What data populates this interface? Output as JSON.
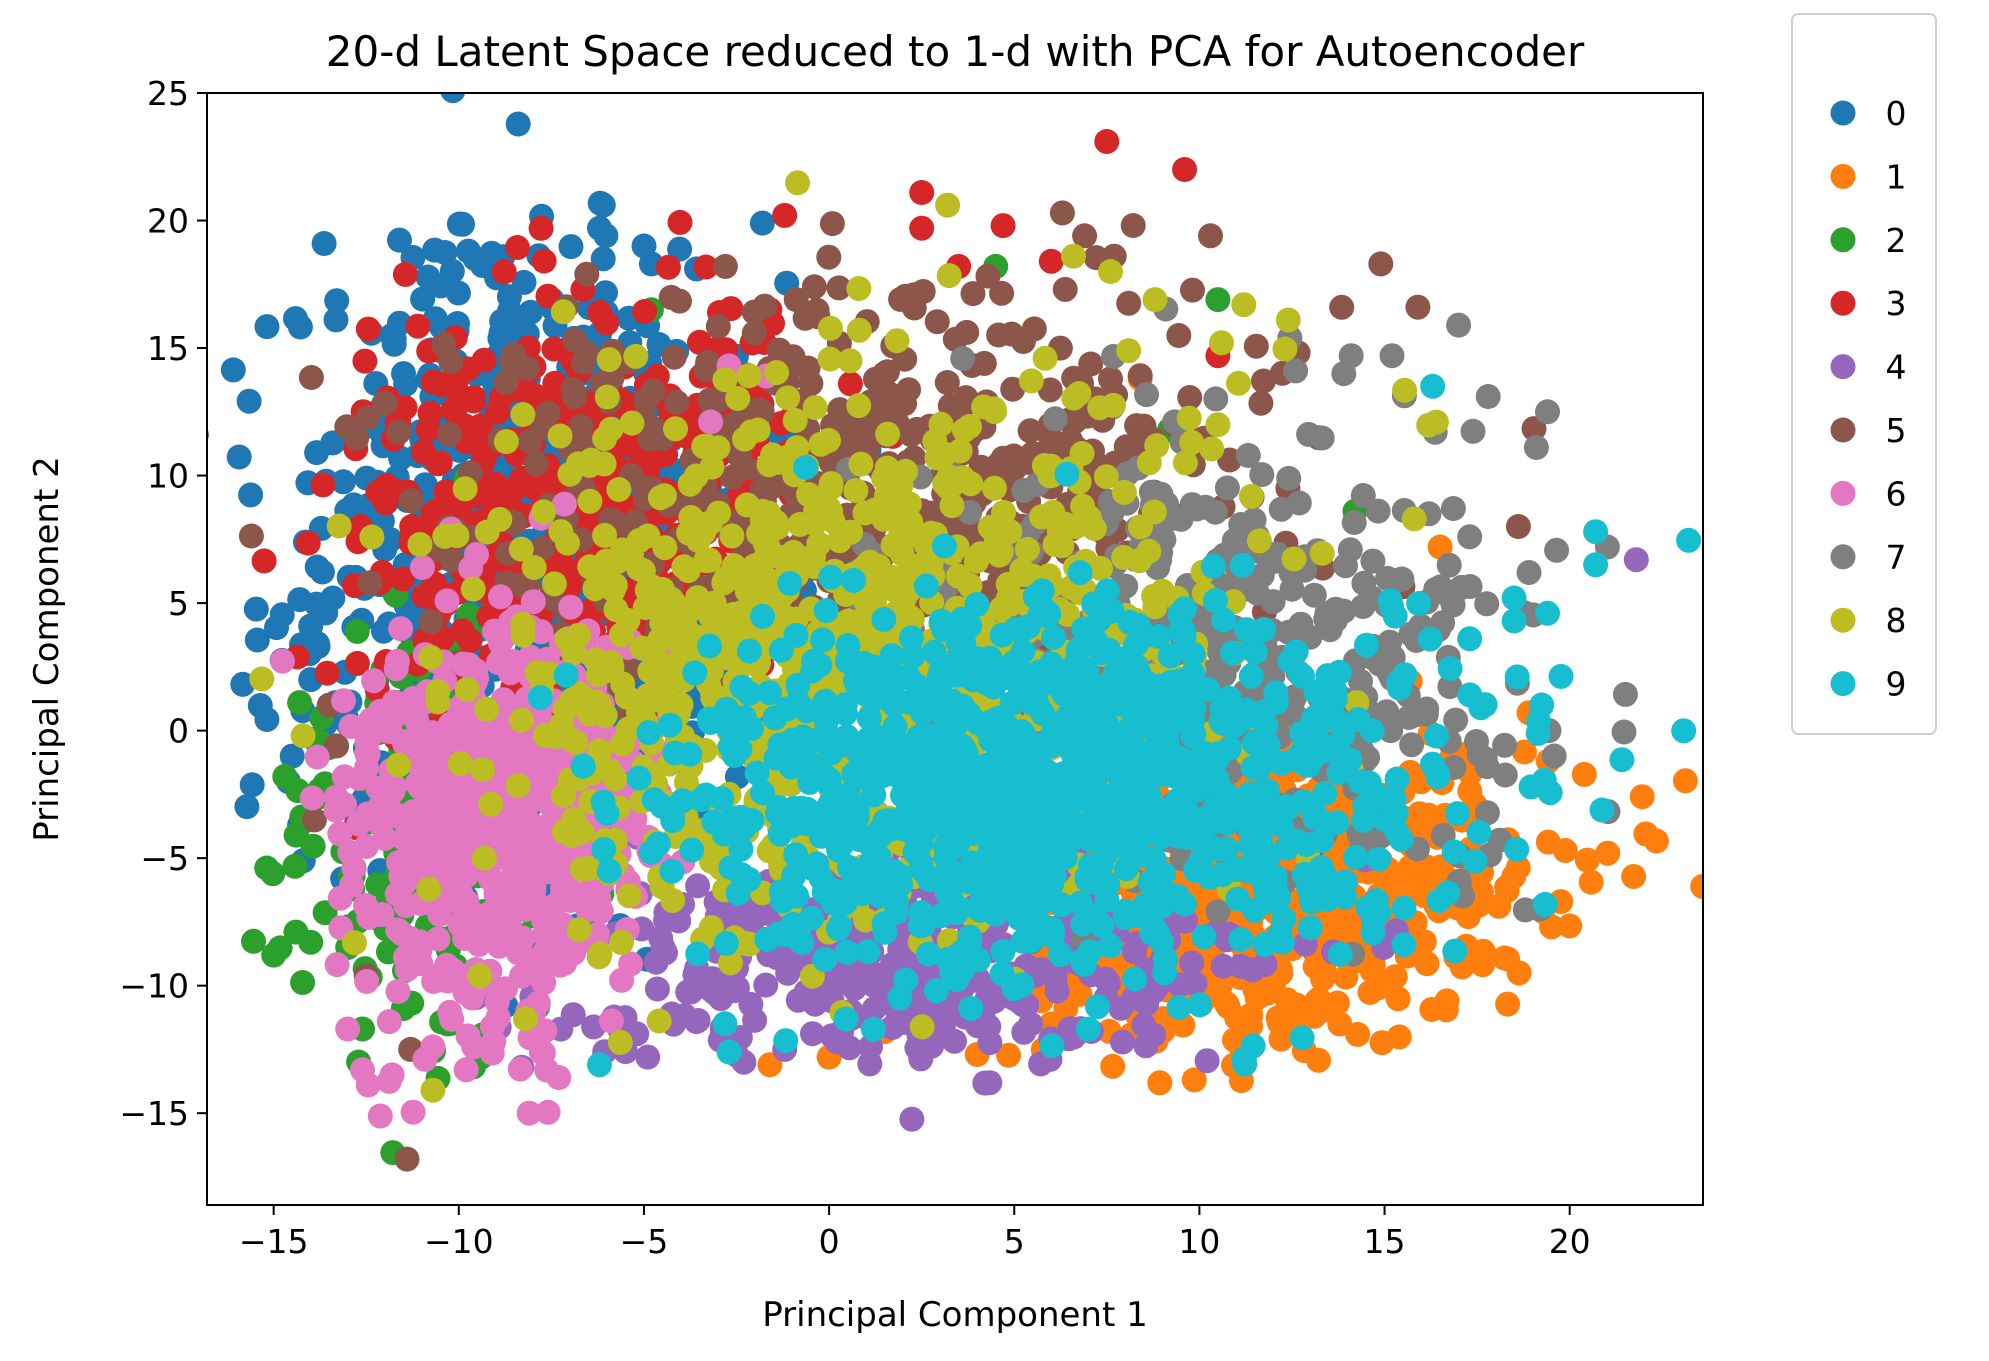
{
  "chart_data": {
    "type": "scatter",
    "title": "20-d Latent Space reduced to 1-d with PCA for Autoencoder",
    "xlabel": "Principal Component 1",
    "ylabel": "Principal Component 2",
    "xlim": [
      -16.8,
      23.6
    ],
    "ylim": [
      -18.6,
      25.0
    ],
    "xticks": [
      -15,
      -10,
      -5,
      0,
      5,
      10,
      15,
      20
    ],
    "yticks": [
      -15,
      -10,
      -5,
      0,
      5,
      10,
      15,
      20,
      25
    ],
    "xtick_labels": [
      "−15",
      "−10",
      "−5",
      "0",
      "5",
      "10",
      "15",
      "20"
    ],
    "ytick_labels": [
      "−15",
      "−10",
      "−5",
      "0",
      "5",
      "10",
      "15",
      "20",
      "25"
    ],
    "grid": false,
    "legend_position": "outside-top-right",
    "series": [
      {
        "name": "0",
        "color": "#1f77b4",
        "cluster": {
          "cx": -8.5,
          "cy": 7.0,
          "sx": 3.0,
          "sy": 6.0,
          "n": 700
        },
        "points": [
          [
            -6.2,
            19.7
          ],
          [
            -5.0,
            19.0
          ],
          [
            -4.8,
            18.3
          ],
          [
            -6.1,
            18.5
          ],
          [
            -1.8,
            19.9
          ],
          [
            -8.5,
            15.9
          ],
          [
            -10.1,
            12.4
          ],
          [
            -11.0,
            11.4
          ],
          [
            -12.0,
            7.1
          ],
          [
            -13.4,
            5.2
          ],
          [
            -14.0,
            4.1
          ],
          [
            -13.8,
            3.3
          ],
          [
            -14.0,
            2.0
          ],
          [
            -14.5,
            -1.0
          ],
          [
            -14.6,
            -2.0
          ],
          [
            -14.3,
            -3.7
          ],
          [
            -14.2,
            -5.1
          ],
          [
            -13.0,
            -7.7
          ]
        ]
      },
      {
        "name": "1",
        "color": "#ff7f0e",
        "cluster": {
          "cx": 12.0,
          "cy": -6.0,
          "sx": 3.5,
          "sy": 3.0,
          "n": 650
        },
        "points": [
          [
            18.9,
            0.7
          ],
          [
            17.3,
            -3.2
          ],
          [
            16.3,
            -5.7
          ],
          [
            15.5,
            -4.0
          ],
          [
            14.0,
            -8.5
          ],
          [
            12.0,
            -10.0
          ],
          [
            10.0,
            -10.3
          ],
          [
            8.5,
            -11.7
          ],
          [
            6.0,
            -11.5
          ],
          [
            4.0,
            -12.7
          ],
          [
            3.0,
            -12.0
          ],
          [
            1.5,
            -11.8
          ],
          [
            0.0,
            -12.8
          ],
          [
            -1.6,
            -13.1
          ],
          [
            16.5,
            7.2
          ],
          [
            8.4,
            13.8
          ]
        ]
      },
      {
        "name": "2",
        "color": "#2ca02c",
        "cluster": {
          "cx": -11.0,
          "cy": -4.0,
          "sx": 1.8,
          "sy": 4.5,
          "n": 160
        },
        "points": [
          [
            -15.0,
            -8.8
          ],
          [
            -14.4,
            -7.9
          ],
          [
            -14.0,
            -8.3
          ],
          [
            -13.0,
            -8.5
          ],
          [
            -12.6,
            -11.7
          ],
          [
            -11.5,
            -10.9
          ],
          [
            -14.3,
            1.1
          ],
          [
            -14.7,
            -1.8
          ],
          [
            -9.8,
            9.9
          ],
          [
            -4.8,
            16.5
          ],
          [
            4.5,
            18.2
          ],
          [
            10.5,
            16.9
          ],
          [
            14.2,
            8.6
          ],
          [
            9.2,
            11.8
          ],
          [
            -10.3,
            -11.5
          ],
          [
            -9.4,
            -12.8
          ]
        ]
      },
      {
        "name": "3",
        "color": "#d62728",
        "cluster": {
          "cx": -6.5,
          "cy": 9.0,
          "sx": 3.0,
          "sy": 4.0,
          "n": 450
        },
        "points": [
          [
            7.5,
            23.1
          ],
          [
            9.6,
            22.0
          ],
          [
            2.5,
            21.1
          ],
          [
            2.5,
            19.7
          ],
          [
            4.7,
            19.8
          ],
          [
            -1.2,
            20.2
          ],
          [
            -1.6,
            16.5
          ],
          [
            3.5,
            18.2
          ],
          [
            6.0,
            18.4
          ],
          [
            10.5,
            14.7
          ],
          [
            -12.2,
            1.6
          ],
          [
            -11.7,
            -0.3
          ],
          [
            -11.5,
            -1.2
          ],
          [
            -12.8,
            -3.8
          ]
        ]
      },
      {
        "name": "4",
        "color": "#9467bd",
        "cluster": {
          "cx": 2.0,
          "cy": -9.0,
          "sx": 4.5,
          "sy": 2.0,
          "n": 380
        },
        "points": [
          [
            21.8,
            6.7
          ],
          [
            14.3,
            -1.8
          ],
          [
            13.3,
            -5.6
          ],
          [
            9.0,
            -6.6
          ],
          [
            4.2,
            -11.4
          ],
          [
            -1.2,
            -12.5
          ],
          [
            -2.3,
            -13.0
          ],
          [
            -4.9,
            -12.8
          ],
          [
            -8.3,
            -13.2
          ]
        ]
      },
      {
        "name": "5",
        "color": "#8c564b",
        "cluster": {
          "cx": 0.5,
          "cy": 9.5,
          "sx": 5.5,
          "sy": 4.0,
          "n": 550
        },
        "points": [
          [
            -11.4,
            -16.8
          ],
          [
            -11.3,
            -12.5
          ],
          [
            -12.5,
            -9.6
          ],
          [
            -13.3,
            -0.6
          ],
          [
            -13.5,
            1.0
          ],
          [
            -13.9,
            -3.5
          ],
          [
            -12.4,
            5.8
          ],
          [
            -2.8,
            18.2
          ],
          [
            -0.4,
            17.4
          ],
          [
            6.3,
            20.3
          ],
          [
            6.9,
            19.4
          ],
          [
            7.7,
            18.6
          ],
          [
            10.3,
            19.4
          ],
          [
            14.9,
            18.3
          ],
          [
            15.9,
            16.6
          ]
        ]
      },
      {
        "name": "6",
        "color": "#e377c2",
        "cluster": {
          "cx": -9.0,
          "cy": -3.5,
          "sx": 2.0,
          "sy": 4.0,
          "n": 600
        },
        "points": [
          [
            -8.1,
            -15.0
          ],
          [
            -11.8,
            -13.5
          ],
          [
            -12.6,
            -13.3
          ],
          [
            -13.0,
            -11.7
          ],
          [
            -10.7,
            -12.4
          ],
          [
            -9.8,
            -13.3
          ],
          [
            -7.3,
            -13.6
          ],
          [
            -2.7,
            14.3
          ],
          [
            -1.7,
            13.9
          ],
          [
            -3.2,
            12.1
          ],
          [
            -1.9,
            5.9
          ]
        ]
      },
      {
        "name": "7",
        "color": "#7f7f7f",
        "cluster": {
          "cx": 10.0,
          "cy": 3.0,
          "sx": 4.5,
          "sy": 4.5,
          "n": 450
        },
        "points": [
          [
            17.0,
            15.9
          ],
          [
            19.4,
            12.5
          ],
          [
            19.1,
            11.1
          ],
          [
            17.8,
            13.1
          ],
          [
            15.2,
            14.7
          ],
          [
            14.1,
            14.7
          ],
          [
            13.9,
            14.0
          ],
          [
            18.9,
            6.2
          ],
          [
            17.3,
            7.6
          ],
          [
            16.2,
            8.5
          ],
          [
            10.5,
            -7.1
          ]
        ]
      },
      {
        "name": "8",
        "color": "#bcbd22",
        "cluster": {
          "cx": 0.5,
          "cy": 3.0,
          "sx": 5.0,
          "sy": 5.5,
          "n": 900
        },
        "points": [
          [
            3.2,
            20.6
          ],
          [
            6.6,
            18.6
          ],
          [
            7.6,
            18.0
          ],
          [
            8.8,
            16.9
          ],
          [
            11.2,
            16.7
          ],
          [
            12.4,
            16.1
          ],
          [
            16.4,
            12.1
          ],
          [
            15.8,
            8.3
          ],
          [
            -10.7,
            -14.1
          ],
          [
            -8.2,
            -11.3
          ]
        ]
      },
      {
        "name": "9",
        "color": "#17becf",
        "cluster": {
          "cx": 6.0,
          "cy": -2.5,
          "sx": 5.0,
          "sy": 3.5,
          "n": 1100
        },
        "points": [
          [
            20.7,
            7.8
          ],
          [
            20.7,
            6.5
          ],
          [
            19.4,
            4.6
          ],
          [
            18.5,
            5.2
          ],
          [
            18.5,
            4.3
          ],
          [
            17.3,
            3.6
          ],
          [
            16.3,
            13.5
          ],
          [
            17.3,
            1.4
          ],
          [
            17.6,
            0.9
          ],
          [
            -6.2,
            -13.1
          ],
          [
            -2.7,
            -12.6
          ],
          [
            -7.8,
            1.3
          ]
        ]
      }
    ]
  }
}
